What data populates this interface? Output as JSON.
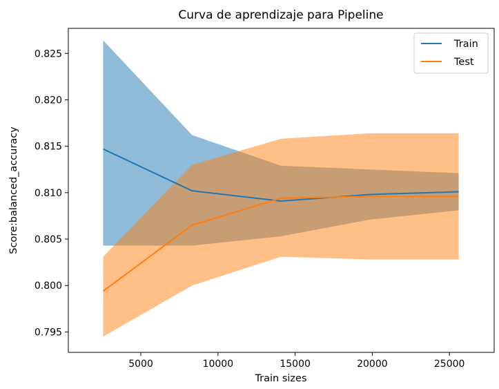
{
  "chart_data": {
    "type": "line",
    "title": "Curva de aprendizaje para Pipeline",
    "xlabel": "Train sizes",
    "ylabel": "Score:balanced_accuracy",
    "xlim": [
      300,
      27900
    ],
    "ylim": [
      0.7928,
      0.8277
    ],
    "xticks": [
      5000,
      10000,
      15000,
      20000,
      25000
    ],
    "yticks": [
      0.795,
      0.8,
      0.805,
      0.81,
      0.815,
      0.82,
      0.825
    ],
    "legend_position": "upper right",
    "grid": false,
    "x": [
      2560,
      8320,
      14080,
      19840,
      25600
    ],
    "series": [
      {
        "name": "Train",
        "color": "#1f77b4",
        "values": [
          0.8147,
          0.8102,
          0.8091,
          0.8098,
          0.8101
        ],
        "band_upper": [
          0.8264,
          0.8162,
          0.8129,
          0.8125,
          0.8121
        ],
        "band_lower": [
          0.8043,
          0.8043,
          0.8053,
          0.8071,
          0.8081
        ]
      },
      {
        "name": "Test",
        "color": "#ff7f0e",
        "values": [
          0.7994,
          0.8065,
          0.8094,
          0.8096,
          0.8096
        ],
        "band_upper": [
          0.8031,
          0.813,
          0.8158,
          0.8164,
          0.8164
        ],
        "band_lower": [
          0.7945,
          0.8,
          0.8031,
          0.8028,
          0.8028
        ]
      }
    ]
  }
}
